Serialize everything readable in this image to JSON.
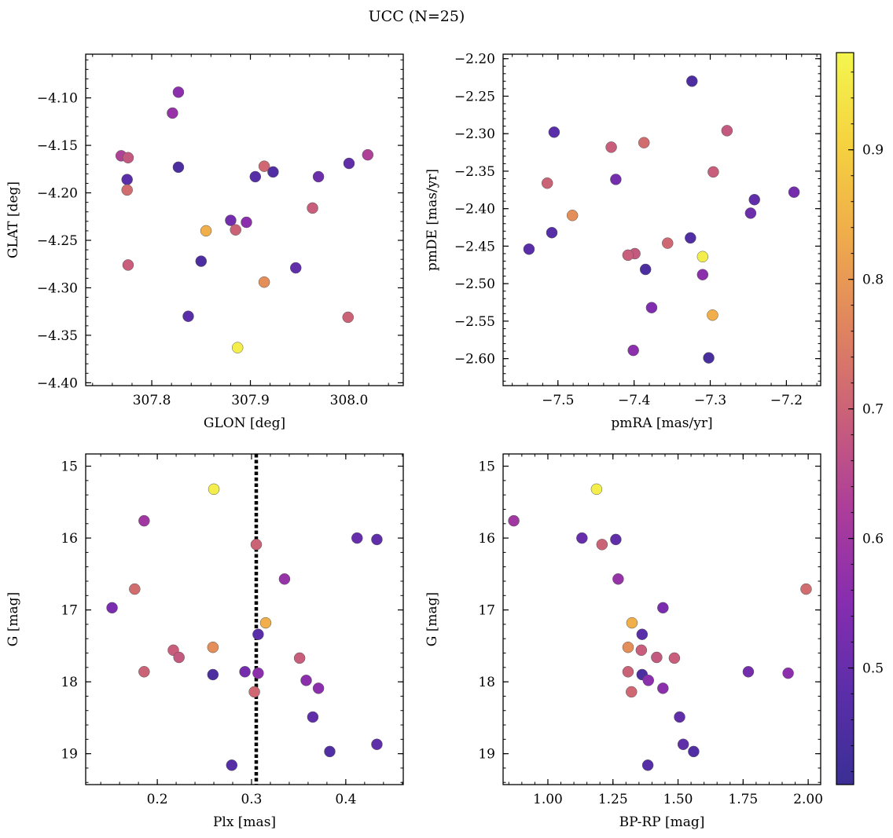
{
  "chart_data": [
    {
      "type": "scatter",
      "title": "UCC (N=25)",
      "xlabel": "GLON [deg]",
      "ylabel": "GLAT [deg]",
      "xlim": [
        307.733,
        308.055
      ],
      "ylim": [
        -4.403,
        -4.054
      ],
      "xticks": [
        307.8,
        307.9,
        308.0
      ],
      "xtick_labels": [
        "307.8",
        "307.9",
        "308.0"
      ],
      "yticks": [
        -4.1,
        -4.15,
        -4.2,
        -4.25,
        -4.3,
        -4.35,
        -4.4
      ],
      "ytick_labels": [
        "−4.10",
        "−4.15",
        "−4.20",
        "−4.25",
        "−4.30",
        "−4.35",
        "−4.40"
      ],
      "y_inverted": false,
      "points": [
        {
          "x": 307.827,
          "y": -4.094,
          "c": 0.56
        },
        {
          "x": 307.821,
          "y": -4.116,
          "c": 0.58
        },
        {
          "x": 307.769,
          "y": -4.161,
          "c": 0.63
        },
        {
          "x": 307.776,
          "y": -4.163,
          "c": 0.68
        },
        {
          "x": 307.827,
          "y": -4.173,
          "c": 0.45
        },
        {
          "x": 307.775,
          "y": -4.186,
          "c": 0.48
        },
        {
          "x": 307.775,
          "y": -4.197,
          "c": 0.72
        },
        {
          "x": 307.776,
          "y": -4.276,
          "c": 0.69
        },
        {
          "x": 307.837,
          "y": -4.33,
          "c": 0.48
        },
        {
          "x": 307.85,
          "y": -4.272,
          "c": 0.45
        },
        {
          "x": 307.855,
          "y": -4.24,
          "c": 0.84
        },
        {
          "x": 307.88,
          "y": -4.229,
          "c": 0.52
        },
        {
          "x": 307.885,
          "y": -4.239,
          "c": 0.7
        },
        {
          "x": 307.896,
          "y": -4.231,
          "c": 0.56
        },
        {
          "x": 307.887,
          "y": -4.363,
          "c": 0.96
        },
        {
          "x": 307.905,
          "y": -4.183,
          "c": 0.47
        },
        {
          "x": 307.914,
          "y": -4.172,
          "c": 0.71
        },
        {
          "x": 307.923,
          "y": -4.178,
          "c": 0.46
        },
        {
          "x": 307.914,
          "y": -4.294,
          "c": 0.78
        },
        {
          "x": 307.946,
          "y": -4.279,
          "c": 0.49
        },
        {
          "x": 307.963,
          "y": -4.216,
          "c": 0.69
        },
        {
          "x": 307.969,
          "y": -4.183,
          "c": 0.51
        },
        {
          "x": 307.999,
          "y": -4.331,
          "c": 0.7
        },
        {
          "x": 308.0,
          "y": -4.169,
          "c": 0.49
        },
        {
          "x": 308.019,
          "y": -4.16,
          "c": 0.63
        }
      ]
    },
    {
      "type": "scatter",
      "xlabel": "pmRA [mas/yr]",
      "ylabel": "pmDE [mas/yr]",
      "xlim": [
        -7.572,
        -7.155
      ],
      "ylim": [
        -2.636,
        -2.194
      ],
      "xticks": [
        -7.5,
        -7.4,
        -7.3,
        -7.2
      ],
      "xtick_labels": [
        "−7.5",
        "−7.4",
        "−7.3",
        "−7.2"
      ],
      "yticks": [
        -2.2,
        -2.25,
        -2.3,
        -2.35,
        -2.4,
        -2.45,
        -2.5,
        -2.55,
        -2.6
      ],
      "ytick_labels": [
        "−2.20",
        "−2.25",
        "−2.30",
        "−2.35",
        "−2.40",
        "−2.45",
        "−2.50",
        "−2.55",
        "−2.60"
      ],
      "y_inverted": false,
      "points": [
        {
          "x": -7.324,
          "y": -2.23,
          "c": 0.45
        },
        {
          "x": -7.505,
          "y": -2.298,
          "c": 0.48
        },
        {
          "x": -7.278,
          "y": -2.296,
          "c": 0.68
        },
        {
          "x": -7.387,
          "y": -2.312,
          "c": 0.72
        },
        {
          "x": -7.43,
          "y": -2.318,
          "c": 0.69
        },
        {
          "x": -7.296,
          "y": -2.351,
          "c": 0.69
        },
        {
          "x": -7.424,
          "y": -2.361,
          "c": 0.52
        },
        {
          "x": -7.514,
          "y": -2.366,
          "c": 0.7
        },
        {
          "x": -7.19,
          "y": -2.378,
          "c": 0.52
        },
        {
          "x": -7.242,
          "y": -2.388,
          "c": 0.49
        },
        {
          "x": -7.247,
          "y": -2.406,
          "c": 0.51
        },
        {
          "x": -7.481,
          "y": -2.409,
          "c": 0.78
        },
        {
          "x": -7.508,
          "y": -2.432,
          "c": 0.47
        },
        {
          "x": -7.326,
          "y": -2.439,
          "c": 0.46
        },
        {
          "x": -7.356,
          "y": -2.446,
          "c": 0.71
        },
        {
          "x": -7.538,
          "y": -2.454,
          "c": 0.48
        },
        {
          "x": -7.399,
          "y": -2.46,
          "c": 0.68
        },
        {
          "x": -7.408,
          "y": -2.462,
          "c": 0.69
        },
        {
          "x": -7.31,
          "y": -2.464,
          "c": 0.96
        },
        {
          "x": -7.385,
          "y": -2.481,
          "c": 0.45
        },
        {
          "x": -7.31,
          "y": -2.488,
          "c": 0.56
        },
        {
          "x": -7.377,
          "y": -2.532,
          "c": 0.54
        },
        {
          "x": -7.297,
          "y": -2.542,
          "c": 0.84
        },
        {
          "x": -7.401,
          "y": -2.589,
          "c": 0.56
        },
        {
          "x": -7.302,
          "y": -2.599,
          "c": 0.44
        }
      ]
    },
    {
      "type": "scatter",
      "xlabel": "Plx [mas]",
      "ylabel": "G [mag]",
      "xlim": [
        0.124,
        0.461
      ],
      "ylim": [
        19.43,
        14.83
      ],
      "xticks": [
        0.2,
        0.3,
        0.4
      ],
      "xtick_labels": [
        "0.2",
        "0.3",
        "0.4"
      ],
      "yticks": [
        15,
        16,
        17,
        18,
        19
      ],
      "ytick_labels": [
        "15",
        "16",
        "17",
        "18",
        "19"
      ],
      "y_inverted": true,
      "vline": 0.305,
      "points": [
        {
          "x": 0.26,
          "y": 15.32,
          "c": 0.96
        },
        {
          "x": 0.186,
          "y": 15.76,
          "c": 0.6
        },
        {
          "x": 0.412,
          "y": 16.0,
          "c": 0.5
        },
        {
          "x": 0.433,
          "y": 16.02,
          "c": 0.49
        },
        {
          "x": 0.305,
          "y": 16.09,
          "c": 0.7
        },
        {
          "x": 0.335,
          "y": 16.57,
          "c": 0.58
        },
        {
          "x": 0.176,
          "y": 16.71,
          "c": 0.72
        },
        {
          "x": 0.152,
          "y": 16.97,
          "c": 0.53
        },
        {
          "x": 0.315,
          "y": 17.18,
          "c": 0.84
        },
        {
          "x": 0.307,
          "y": 17.34,
          "c": 0.48
        },
        {
          "x": 0.259,
          "y": 17.52,
          "c": 0.78
        },
        {
          "x": 0.217,
          "y": 17.56,
          "c": 0.69
        },
        {
          "x": 0.223,
          "y": 17.66,
          "c": 0.68
        },
        {
          "x": 0.351,
          "y": 17.67,
          "c": 0.69
        },
        {
          "x": 0.186,
          "y": 17.86,
          "c": 0.7
        },
        {
          "x": 0.293,
          "y": 17.86,
          "c": 0.52
        },
        {
          "x": 0.307,
          "y": 17.88,
          "c": 0.56
        },
        {
          "x": 0.259,
          "y": 17.9,
          "c": 0.45
        },
        {
          "x": 0.358,
          "y": 17.98,
          "c": 0.56
        },
        {
          "x": 0.371,
          "y": 18.09,
          "c": 0.56
        },
        {
          "x": 0.303,
          "y": 18.14,
          "c": 0.71
        },
        {
          "x": 0.365,
          "y": 18.49,
          "c": 0.49
        },
        {
          "x": 0.433,
          "y": 18.87,
          "c": 0.49
        },
        {
          "x": 0.383,
          "y": 18.97,
          "c": 0.46
        },
        {
          "x": 0.279,
          "y": 19.16,
          "c": 0.47
        }
      ]
    },
    {
      "type": "scatter",
      "xlabel": "BP-RP [mag]",
      "ylabel": "G [mag]",
      "xlim": [
        0.828,
        2.048
      ],
      "ylim": [
        19.43,
        14.83
      ],
      "xticks": [
        1.0,
        1.25,
        1.5,
        1.75,
        2.0
      ],
      "xtick_labels": [
        "1.00",
        "1.25",
        "1.50",
        "1.75",
        "2.00"
      ],
      "yticks": [
        15,
        16,
        17,
        18,
        19
      ],
      "ytick_labels": [
        "15",
        "16",
        "17",
        "18",
        "19"
      ],
      "y_inverted": true,
      "points": [
        {
          "x": 1.187,
          "y": 15.32,
          "c": 0.96
        },
        {
          "x": 0.869,
          "y": 15.76,
          "c": 0.6
        },
        {
          "x": 1.131,
          "y": 16.0,
          "c": 0.5
        },
        {
          "x": 1.261,
          "y": 16.02,
          "c": 0.49
        },
        {
          "x": 1.208,
          "y": 16.09,
          "c": 0.7
        },
        {
          "x": 1.27,
          "y": 16.57,
          "c": 0.58
        },
        {
          "x": 1.992,
          "y": 16.71,
          "c": 0.72
        },
        {
          "x": 1.442,
          "y": 16.97,
          "c": 0.53
        },
        {
          "x": 1.323,
          "y": 17.18,
          "c": 0.84
        },
        {
          "x": 1.362,
          "y": 17.34,
          "c": 0.48
        },
        {
          "x": 1.308,
          "y": 17.52,
          "c": 0.78
        },
        {
          "x": 1.359,
          "y": 17.56,
          "c": 0.69
        },
        {
          "x": 1.418,
          "y": 17.66,
          "c": 0.68
        },
        {
          "x": 1.486,
          "y": 17.67,
          "c": 0.69
        },
        {
          "x": 1.308,
          "y": 17.86,
          "c": 0.7
        },
        {
          "x": 1.77,
          "y": 17.86,
          "c": 0.52
        },
        {
          "x": 1.923,
          "y": 17.88,
          "c": 0.56
        },
        {
          "x": 1.362,
          "y": 17.9,
          "c": 0.45
        },
        {
          "x": 1.386,
          "y": 17.98,
          "c": 0.56
        },
        {
          "x": 1.442,
          "y": 18.09,
          "c": 0.56
        },
        {
          "x": 1.321,
          "y": 18.14,
          "c": 0.71
        },
        {
          "x": 1.506,
          "y": 18.49,
          "c": 0.49
        },
        {
          "x": 1.52,
          "y": 18.87,
          "c": 0.49
        },
        {
          "x": 1.56,
          "y": 18.97,
          "c": 0.46
        },
        {
          "x": 1.384,
          "y": 19.16,
          "c": 0.47
        }
      ]
    }
  ],
  "colorbar": {
    "colormap": "plasma",
    "range": [
      0.41,
      0.975
    ],
    "ticks": [
      0.5,
      0.6,
      0.7,
      0.8,
      0.9
    ],
    "tick_labels": [
      "0.5",
      "0.6",
      "0.7",
      "0.8",
      "0.9"
    ]
  },
  "colors": {
    "marker_edge": "#555555",
    "vline": "#000000",
    "cmap_stops": [
      "#3a2f95",
      "#5b2ea9",
      "#872db0",
      "#ac3d9a",
      "#c95f7a",
      "#e0845f",
      "#efac4b",
      "#f5d23f",
      "#f4f64f"
    ]
  }
}
